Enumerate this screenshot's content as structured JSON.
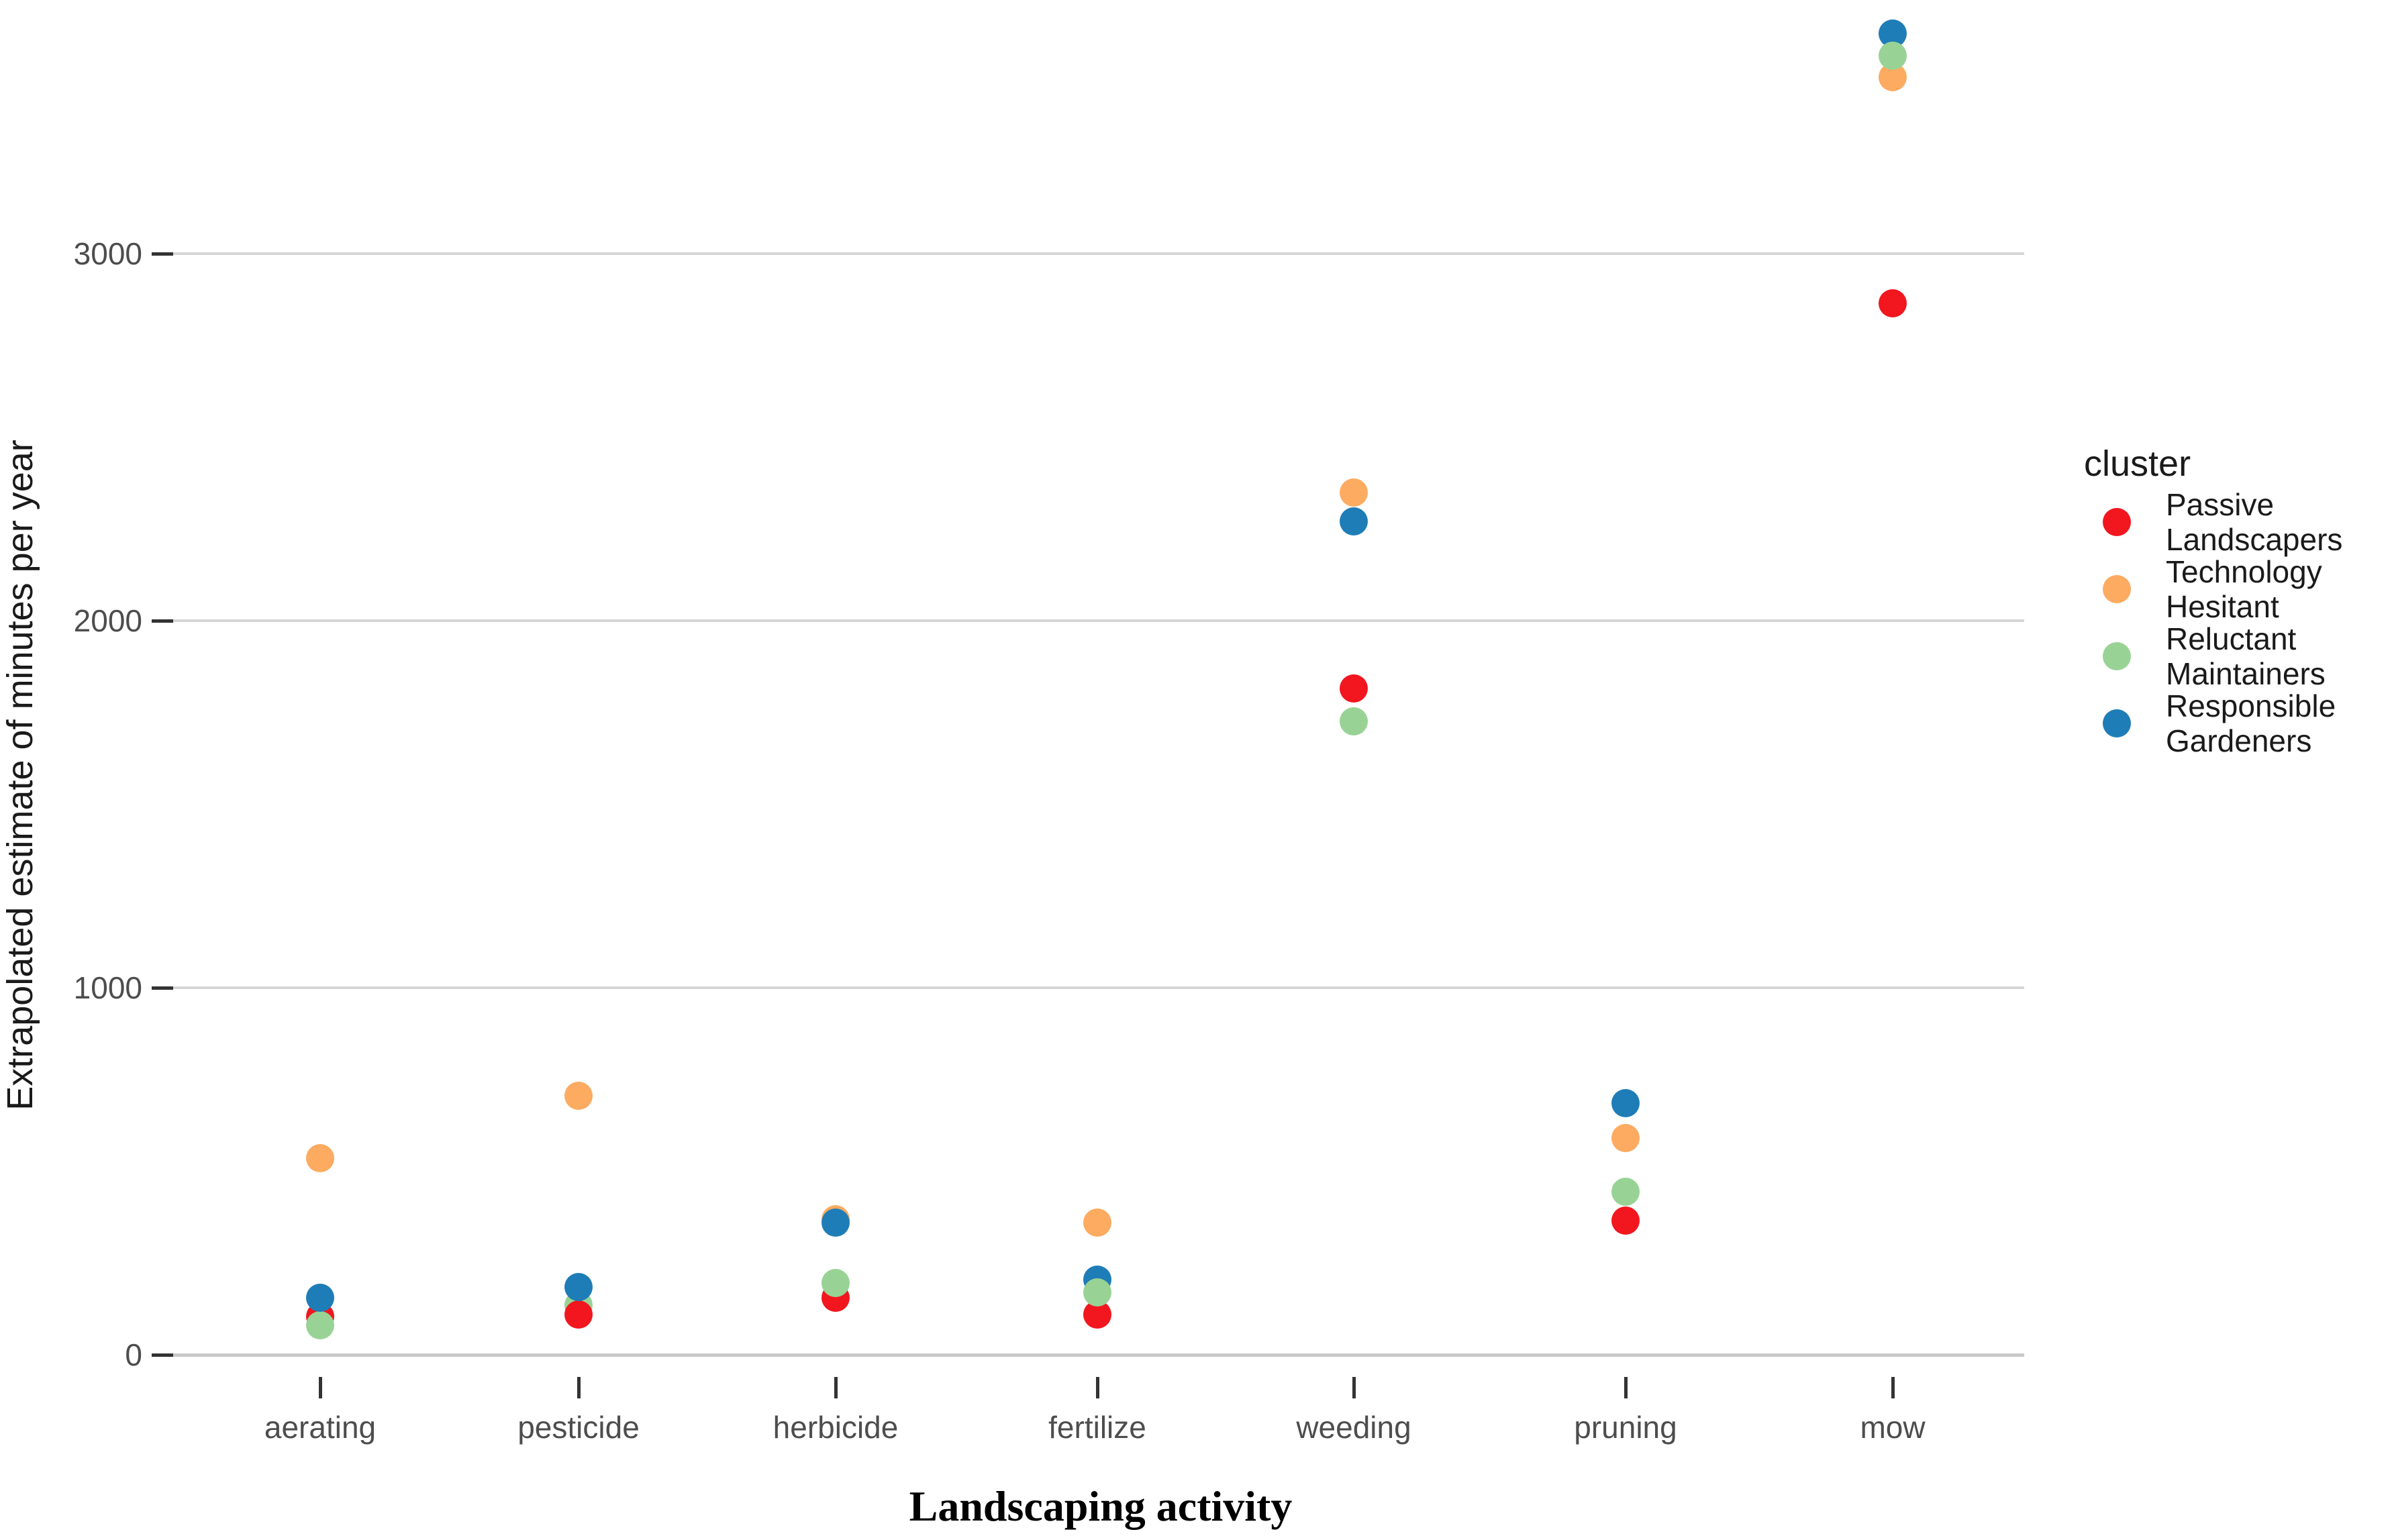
{
  "chart_data": {
    "type": "scatter",
    "title": "",
    "xlabel": "Landscaping activity",
    "ylabel": "Extrapolated estimate of minutes per year",
    "categories": [
      "aerating",
      "pesticide",
      "herbicide",
      "fertilize",
      "weeding",
      "pruning",
      "mow"
    ],
    "ylim": [
      0,
      3650
    ],
    "yticks": [
      0,
      1000,
      2000,
      3000
    ],
    "ytick_labels": [
      "0",
      "1000",
      "2000",
      "3000"
    ],
    "grid": "horizontal-only",
    "legend_position": "right",
    "series": [
      {
        "name": "Passive Landscapers",
        "color": "#f2161f",
        "values": [
          105,
          110,
          155,
          110,
          1815,
          365,
          2865
        ],
        "z": [
          1,
          2,
          1,
          1,
          1,
          2,
          1
        ]
      },
      {
        "name": "Technology Hesitant",
        "color": "#fcab61",
        "values": [
          535,
          705,
          370,
          360,
          2350,
          590,
          3480
        ],
        "z": [
          1,
          1,
          1,
          1,
          1,
          1,
          1
        ]
      },
      {
        "name": "Reluctant Maintainers",
        "color": "#98d395",
        "values": [
          80,
          135,
          195,
          170,
          1725,
          445,
          3540
        ],
        "z": [
          2,
          1,
          2,
          3,
          1,
          1,
          3
        ]
      },
      {
        "name": "Responsible Gardeners",
        "color": "#1e7db7",
        "values": [
          155,
          185,
          360,
          205,
          2270,
          685,
          3600
        ],
        "z": [
          3,
          3,
          2,
          2,
          2,
          1,
          1
        ]
      }
    ]
  },
  "legend": {
    "title": "cluster",
    "entries": [
      {
        "label_lines": [
          "Passive",
          "Landscapers"
        ],
        "color": "#f2161f"
      },
      {
        "label_lines": [
          "Technology",
          "Hesitant"
        ],
        "color": "#fcab61"
      },
      {
        "label_lines": [
          "Reluctant",
          "Maintainers"
        ],
        "color": "#98d395"
      },
      {
        "label_lines": [
          "Responsible",
          "Gardeners"
        ],
        "color": "#1e7db7"
      }
    ]
  }
}
